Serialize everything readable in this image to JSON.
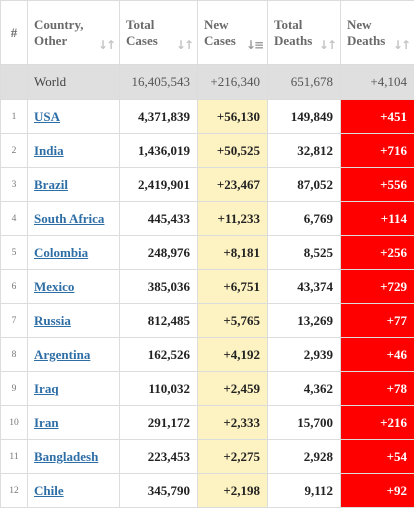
{
  "headers": {
    "index": "#",
    "country_line1": "Country,",
    "country_line2": "Other",
    "total_cases_line1": "Total",
    "total_cases_line2": "Cases",
    "new_cases_line1": "New",
    "new_cases_line2": "Cases",
    "total_deaths_line1": "Total",
    "total_deaths_line2": "Deaths",
    "new_deaths_line1": "New",
    "new_deaths_line2": "Deaths"
  },
  "world": {
    "name": "World",
    "total_cases": "16,405,543",
    "new_cases": "+216,340",
    "total_deaths": "651,678",
    "new_deaths": "+4,104"
  },
  "rows": [
    {
      "index": "1",
      "country": "USA",
      "total_cases": "4,371,839",
      "new_cases": "+56,130",
      "total_deaths": "149,849",
      "new_deaths": "+451"
    },
    {
      "index": "2",
      "country": "India",
      "total_cases": "1,436,019",
      "new_cases": "+50,525",
      "total_deaths": "32,812",
      "new_deaths": "+716"
    },
    {
      "index": "3",
      "country": "Brazil",
      "total_cases": "2,419,901",
      "new_cases": "+23,467",
      "total_deaths": "87,052",
      "new_deaths": "+556"
    },
    {
      "index": "4",
      "country": "South Africa",
      "total_cases": "445,433",
      "new_cases": "+11,233",
      "total_deaths": "6,769",
      "new_deaths": "+114"
    },
    {
      "index": "5",
      "country": "Colombia",
      "total_cases": "248,976",
      "new_cases": "+8,181",
      "total_deaths": "8,525",
      "new_deaths": "+256"
    },
    {
      "index": "6",
      "country": "Mexico",
      "total_cases": "385,036",
      "new_cases": "+6,751",
      "total_deaths": "43,374",
      "new_deaths": "+729"
    },
    {
      "index": "7",
      "country": "Russia",
      "total_cases": "812,485",
      "new_cases": "+5,765",
      "total_deaths": "13,269",
      "new_deaths": "+77"
    },
    {
      "index": "8",
      "country": "Argentina",
      "total_cases": "162,526",
      "new_cases": "+4,192",
      "total_deaths": "2,939",
      "new_deaths": "+46"
    },
    {
      "index": "9",
      "country": "Iraq",
      "total_cases": "110,032",
      "new_cases": "+2,459",
      "total_deaths": "4,362",
      "new_deaths": "+78"
    },
    {
      "index": "10",
      "country": "Iran",
      "total_cases": "291,172",
      "new_cases": "+2,333",
      "total_deaths": "15,700",
      "new_deaths": "+216"
    },
    {
      "index": "11",
      "country": "Bangladesh",
      "total_cases": "223,453",
      "new_cases": "+2,275",
      "total_deaths": "2,928",
      "new_deaths": "+54"
    },
    {
      "index": "12",
      "country": "Chile",
      "total_cases": "345,790",
      "new_cases": "+2,198",
      "total_deaths": "9,112",
      "new_deaths": "+92"
    }
  ],
  "colors": {
    "new_cases_bg": "#fdf2c2",
    "new_deaths_bg": "#ff0000",
    "world_row_bg": "#dfdfdf",
    "country_link": "#2e6ea6"
  },
  "icons": {
    "sort_inactive": "sort-arrows-icon",
    "sort_active": "sort-descending-icon"
  }
}
